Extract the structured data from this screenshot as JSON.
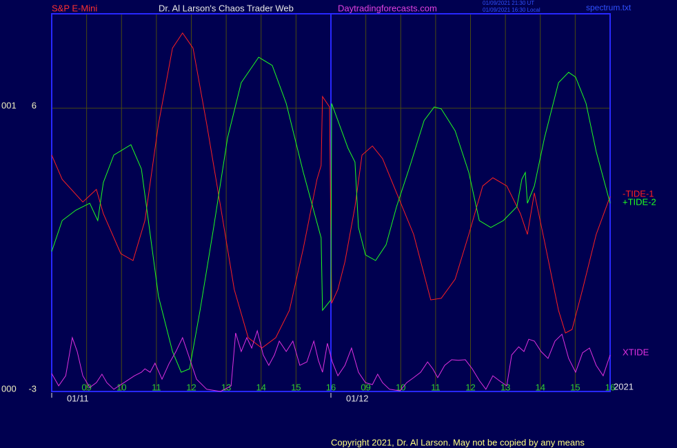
{
  "chart_data": {
    "type": "line",
    "title": "S&P E-Mini",
    "subtitle": "Dr. Al Larson's Chaos Trader Web",
    "site": "Daytradingforecasts.com",
    "timestamps": [
      "01/09/2021 21:30 UT",
      "01/09/2021 16:30 Local"
    ],
    "file": "spectrum.txt",
    "year": "2021",
    "copyright": "Copyright 2021, Dr. Al Larson. May not be copied by any means",
    "left_labels": [
      "001",
      "000"
    ],
    "xlim": [
      0,
      16
    ],
    "ylim": [
      -3,
      9
    ],
    "yticks": [
      6,
      -3
    ],
    "xticks": [
      {
        "value": 1,
        "label": "09"
      },
      {
        "value": 2,
        "label": "10"
      },
      {
        "value": 3,
        "label": "11"
      },
      {
        "value": 4,
        "label": "12"
      },
      {
        "value": 5,
        "label": "13"
      },
      {
        "value": 6,
        "label": "14"
      },
      {
        "value": 7,
        "label": "15"
      },
      {
        "value": 8,
        "label": "16"
      },
      {
        "value": 9,
        "label": "09"
      },
      {
        "value": 10,
        "label": "10"
      },
      {
        "value": 11,
        "label": "11"
      },
      {
        "value": 12,
        "label": "12"
      },
      {
        "value": 13,
        "label": "13"
      },
      {
        "value": 14,
        "label": "14"
      },
      {
        "value": 15,
        "label": "15"
      },
      {
        "value": 16,
        "label": "16"
      }
    ],
    "day_ticks": [
      {
        "value": 0,
        "label": "01/11"
      },
      {
        "value": 8,
        "label": "01/12"
      }
    ],
    "grid": true,
    "series": [
      {
        "name": "-TIDE-1",
        "color": "#ff2020",
        "x": [
          0,
          0.3,
          0.89,
          1.28,
          1.48,
          1.98,
          2.33,
          2.67,
          3.06,
          3.46,
          3.75,
          4.05,
          4.44,
          4.84,
          5.23,
          5.63,
          6.02,
          6.42,
          6.81,
          7.21,
          7.6,
          7.72,
          7.76,
          7.96,
          8.02,
          8.2,
          8.4,
          8.69,
          8.89,
          9.19,
          9.48,
          9.88,
          10.37,
          10.86,
          11.16,
          11.56,
          11.95,
          12.35,
          12.64,
          13.04,
          13.43,
          13.63,
          13.83,
          14.12,
          14.52,
          14.72,
          14.91,
          15.21,
          15.6,
          16
        ],
        "values": [
          4.51,
          3.74,
          3.02,
          3.42,
          2.65,
          1.38,
          1.16,
          2.43,
          5.5,
          7.91,
          8.39,
          7.91,
          5.5,
          2.87,
          0.24,
          -1.29,
          -1.62,
          -1.29,
          -0.42,
          1.55,
          3.74,
          4.18,
          6.37,
          6.04,
          -0.2,
          0.24,
          1.12,
          2.87,
          4.51,
          4.8,
          4.4,
          3.31,
          1.99,
          -0.09,
          -0.04,
          0.57,
          1.99,
          3.53,
          3.79,
          3.53,
          2.65,
          1.99,
          3.31,
          1.77,
          -0.42,
          -1.14,
          -1.03,
          0.24,
          1.99,
          3.2
        ]
      },
      {
        "name": "+TIDE-2",
        "color": "#20ff20",
        "x": [
          0,
          0.3,
          0.69,
          1.09,
          1.32,
          1.48,
          1.78,
          2.27,
          2.57,
          2.77,
          3.06,
          3.46,
          3.71,
          3.95,
          4.25,
          4.64,
          5.04,
          5.43,
          5.93,
          6.32,
          6.72,
          7.21,
          7.72,
          7.76,
          8.0,
          8.02,
          8.2,
          8.49,
          8.69,
          8.79,
          8.99,
          9.28,
          9.58,
          9.88,
          10.27,
          10.67,
          10.96,
          11.16,
          11.56,
          11.95,
          12.25,
          12.58,
          12.94,
          13.33,
          13.47,
          13.57,
          13.63,
          13.83,
          14.12,
          14.52,
          14.81,
          15.01,
          15.31,
          15.6,
          16
        ],
        "values": [
          1.45,
          2.43,
          2.76,
          2.98,
          2.43,
          3.64,
          4.51,
          4.84,
          4.07,
          2.43,
          0.02,
          -1.73,
          -2.39,
          -2.28,
          -0.42,
          2.21,
          5.06,
          6.81,
          7.62,
          7.36,
          6.15,
          3.96,
          1.88,
          -0.42,
          -0.09,
          6.15,
          5.61,
          4.73,
          4.29,
          2.21,
          1.34,
          1.16,
          1.66,
          2.87,
          4.18,
          5.61,
          6.04,
          5.98,
          5.28,
          3.96,
          2.43,
          2.21,
          2.43,
          2.87,
          3.74,
          3.96,
          2.98,
          3.53,
          5.06,
          6.81,
          7.14,
          6.99,
          6.15,
          4.62,
          2.98
        ]
      },
      {
        "name": "XTIDE",
        "color": "#e030e0",
        "x": [
          0,
          0.2,
          0.4,
          0.59,
          0.73,
          0.89,
          1.09,
          1.28,
          1.44,
          1.58,
          1.78,
          2.07,
          2.37,
          2.57,
          2.67,
          2.82,
          2.96,
          3.16,
          3.36,
          3.56,
          3.75,
          3.95,
          4.15,
          4.44,
          4.84,
          5.14,
          5.27,
          5.43,
          5.59,
          5.73,
          5.89,
          6.06,
          6.22,
          6.38,
          6.52,
          6.72,
          6.91,
          7.11,
          7.31,
          7.51,
          7.64,
          7.76,
          7.9,
          8.04,
          8.2,
          8.4,
          8.59,
          8.79,
          8.99,
          9.19,
          9.34,
          9.48,
          9.68,
          9.98,
          10.17,
          10.37,
          10.57,
          10.77,
          10.92,
          11.06,
          11.26,
          11.46,
          11.65,
          11.85,
          12.05,
          12.25,
          12.44,
          12.64,
          12.84,
          13.04,
          13.18,
          13.38,
          13.53,
          13.67,
          13.83,
          14.02,
          14.22,
          14.42,
          14.62,
          14.81,
          15.01,
          15.21,
          15.41,
          15.6,
          15.8,
          16
        ],
        "values": [
          -2.43,
          -2.82,
          -2.5,
          -1.29,
          -1.73,
          -2.5,
          -2.87,
          -2.72,
          -2.45,
          -2.72,
          -2.93,
          -2.72,
          -2.5,
          -2.39,
          -2.28,
          -2.39,
          -2.1,
          -2.61,
          -2.12,
          -1.73,
          -1.29,
          -1.95,
          -2.61,
          -2.93,
          -3.0,
          -2.82,
          -1.14,
          -1.73,
          -1.29,
          -1.62,
          -1.07,
          -1.84,
          -2.17,
          -1.84,
          -1.4,
          -1.73,
          -1.4,
          -2.17,
          -2.06,
          -1.4,
          -2.01,
          -2.39,
          -1.47,
          -2.06,
          -2.5,
          -2.17,
          -1.62,
          -2.39,
          -2.72,
          -2.78,
          -2.45,
          -2.72,
          -2.93,
          -2.98,
          -2.72,
          -2.56,
          -2.39,
          -2.06,
          -2.28,
          -2.56,
          -2.17,
          -1.99,
          -2.01,
          -1.99,
          -2.28,
          -2.65,
          -2.93,
          -2.5,
          -2.67,
          -2.82,
          -1.84,
          -1.58,
          -1.73,
          -1.34,
          -1.4,
          -1.73,
          -1.95,
          -1.4,
          -1.18,
          -1.95,
          -2.39,
          -1.77,
          -1.62,
          -2.17,
          -2.5,
          -1.84
        ]
      }
    ]
  }
}
